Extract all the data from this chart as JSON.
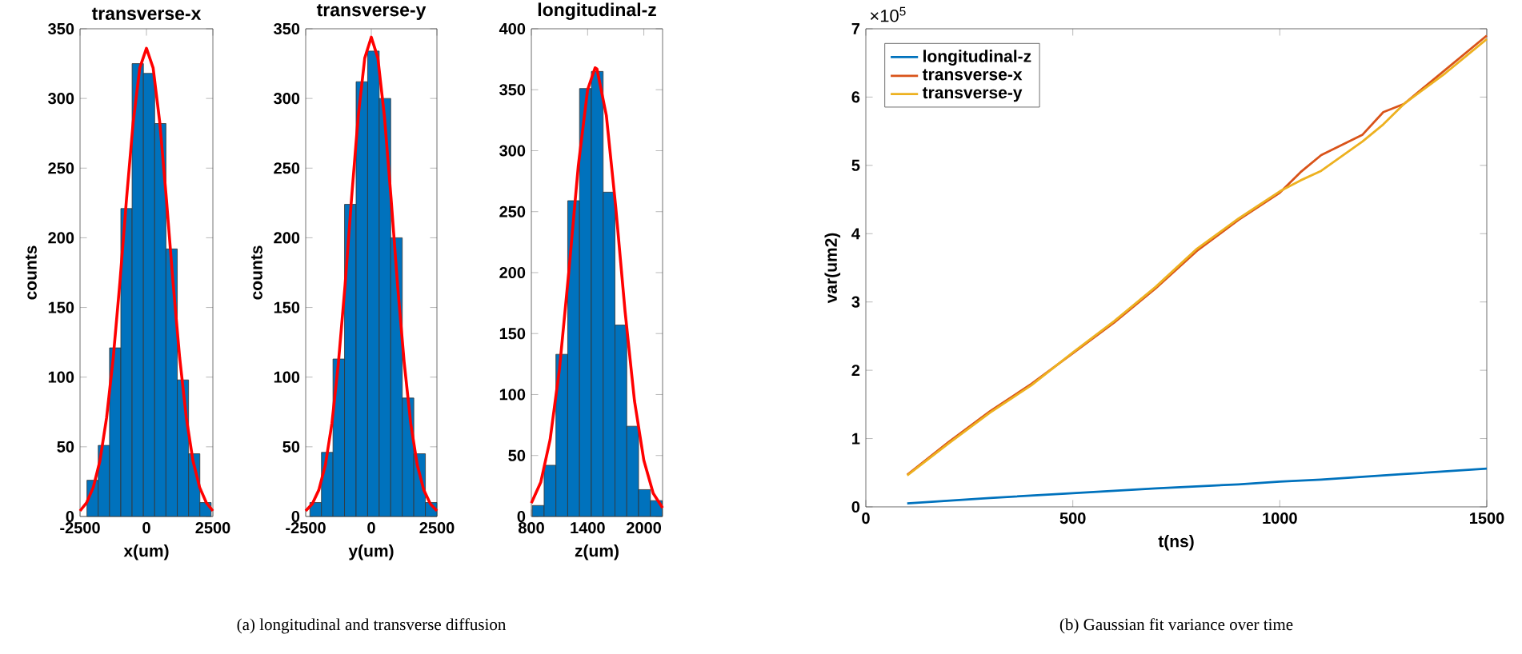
{
  "chart_data": [
    {
      "type": "histogram",
      "title": "transverse-x",
      "xlabel": "x(um)",
      "ylabel": "counts",
      "xlim": [
        -2500,
        2500
      ],
      "xticks": [
        -2500,
        0,
        2500
      ],
      "ylim": [
        0,
        350
      ],
      "yticks": [
        0,
        50,
        100,
        150,
        200,
        250,
        300,
        350
      ],
      "series": [
        {
          "type": "histogram",
          "color": "#0072bd",
          "bins": [
            -2240,
            -1815,
            -1390,
            -965,
            -540,
            -115,
            310,
            735,
            1160,
            1585,
            2010,
            2435
          ],
          "values": [
            26,
            51,
            121,
            221,
            325,
            318,
            282,
            192,
            98,
            45,
            10
          ]
        },
        {
          "type": "line",
          "color": "#ff0000",
          "x": [
            -2500,
            -2250,
            -2000,
            -1750,
            -1500,
            -1250,
            -1000,
            -750,
            -500,
            -250,
            0,
            250,
            500,
            750,
            1000,
            1250,
            1500,
            1750,
            2000,
            2250,
            2500
          ],
          "values": [
            4,
            10,
            21,
            40,
            71,
            114,
            168,
            228,
            283,
            322,
            336,
            322,
            283,
            228,
            168,
            114,
            71,
            40,
            21,
            10,
            4
          ]
        }
      ]
    },
    {
      "type": "histogram",
      "title": "transverse-y",
      "xlabel": "y(um)",
      "ylabel": "counts",
      "xlim": [
        -2500,
        2500
      ],
      "xticks": [
        -2500,
        0,
        2500
      ],
      "ylim": [
        0,
        350
      ],
      "yticks": [
        0,
        50,
        100,
        150,
        200,
        250,
        300,
        350
      ],
      "annotations": [
        "(a) longitudinal and transverse diffusion"
      ],
      "series": [
        {
          "type": "histogram",
          "color": "#0072bd",
          "bins": [
            -2340,
            -1900,
            -1460,
            -1020,
            -580,
            -140,
            300,
            740,
            1180,
            1620,
            2060,
            2500
          ],
          "values": [
            10,
            46,
            113,
            224,
            312,
            334,
            300,
            200,
            85,
            45,
            10
          ]
        },
        {
          "type": "line",
          "color": "#ff0000",
          "x": [
            -2500,
            -2250,
            -2000,
            -1750,
            -1500,
            -1250,
            -1000,
            -750,
            -500,
            -250,
            0,
            250,
            500,
            750,
            1000,
            1250,
            1500,
            1750,
            2000,
            2250,
            2500
          ],
          "values": [
            4,
            9,
            19,
            37,
            67,
            111,
            166,
            229,
            287,
            329,
            344,
            329,
            287,
            229,
            166,
            111,
            67,
            37,
            19,
            9,
            4
          ]
        }
      ]
    },
    {
      "type": "histogram",
      "title": "longitudinal-z",
      "xlabel": "z(um)",
      "xlim": [
        800,
        2200
      ],
      "xticks": [
        800,
        1400,
        2000
      ],
      "ylim": [
        0,
        400
      ],
      "yticks": [
        0,
        50,
        100,
        150,
        200,
        250,
        300,
        350,
        400
      ],
      "series": [
        {
          "type": "histogram",
          "color": "#0072bd",
          "bins": [
            810,
            936,
            1062,
            1188,
            1314,
            1440,
            1566,
            1692,
            1818,
            1944,
            2070,
            2196
          ],
          "values": [
            9,
            42,
            133,
            259,
            351,
            365,
            266,
            157,
            74,
            22,
            13
          ]
        },
        {
          "type": "line",
          "color": "#ff0000",
          "x": [
            800,
            900,
            1000,
            1100,
            1200,
            1300,
            1400,
            1480,
            1500,
            1600,
            1700,
            1800,
            1900,
            2000,
            2100,
            2200
          ],
          "values": [
            11,
            28,
            63,
            121,
            201,
            287,
            350,
            368,
            367,
            329,
            254,
            168,
            95,
            46,
            19,
            7
          ]
        }
      ]
    },
    {
      "type": "line",
      "xlabel": "t(ns)",
      "ylabel": "var(um2)",
      "xlim": [
        0,
        1500
      ],
      "xticks": [
        0,
        500,
        1000,
        1500
      ],
      "ylim": [
        0,
        7
      ],
      "yticks": [
        0,
        1,
        2,
        3,
        4,
        5,
        6,
        7
      ],
      "legend": "top left",
      "annotations": [
        "×10$^{5}$",
        "(b) Gaussian fit variance over time"
      ],
      "series": [
        {
          "name": "longitudinal-z",
          "color": "#0072bd",
          "x": [
            100,
            300,
            500,
            700,
            900,
            1000,
            1100,
            1200,
            1300,
            1400,
            1500
          ],
          "values": [
            0.05,
            0.13,
            0.2,
            0.27,
            0.33,
            0.37,
            0.4,
            0.44,
            0.48,
            0.52,
            0.56
          ]
        },
        {
          "name": "transverse-x",
          "color": "#d95319",
          "x": [
            100,
            200,
            300,
            400,
            500,
            600,
            700,
            800,
            900,
            1000,
            1050,
            1100,
            1200,
            1250,
            1300,
            1400,
            1500
          ],
          "values": [
            0.47,
            0.95,
            1.4,
            1.8,
            2.25,
            2.7,
            3.2,
            3.75,
            4.2,
            4.6,
            4.9,
            5.15,
            5.45,
            5.78,
            5.9,
            6.4,
            6.9
          ]
        },
        {
          "name": "transverse-y",
          "color": "#edb120",
          "x": [
            100,
            200,
            300,
            400,
            500,
            600,
            700,
            800,
            900,
            1000,
            1050,
            1100,
            1200,
            1250,
            1300,
            1400,
            1500
          ],
          "values": [
            0.46,
            0.93,
            1.38,
            1.78,
            2.26,
            2.72,
            3.22,
            3.78,
            4.22,
            4.62,
            4.78,
            4.92,
            5.35,
            5.6,
            5.9,
            6.35,
            6.85
          ]
        }
      ]
    }
  ]
}
